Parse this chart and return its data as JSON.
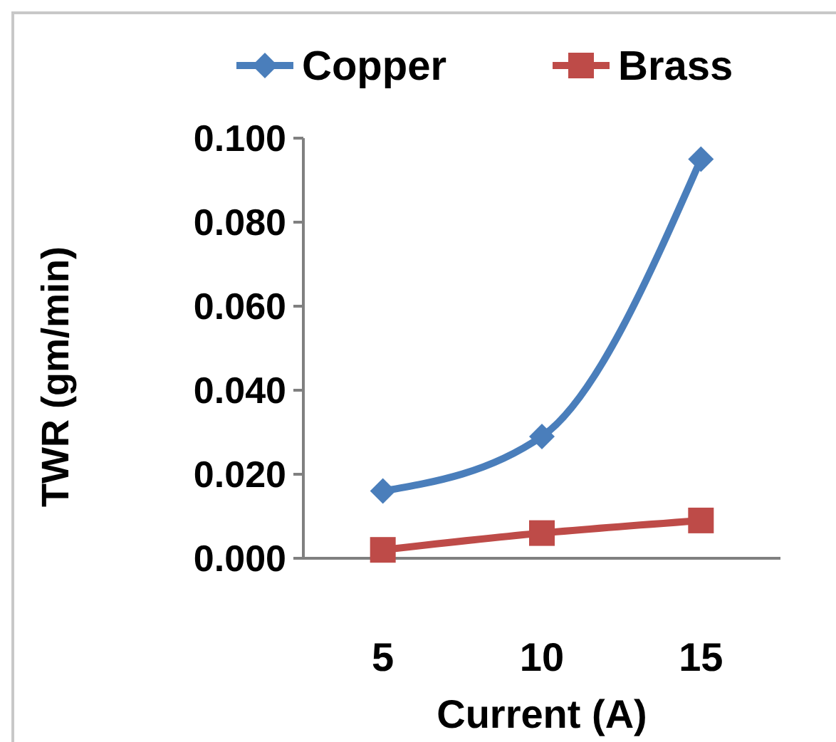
{
  "chart_data": {
    "type": "line",
    "xlabel": "Current (A)",
    "ylabel": "TWR  (gm/min)",
    "categories": [
      "5",
      "10",
      "15"
    ],
    "series": [
      {
        "name": "Copper",
        "color": "#4a7ebb",
        "values": [
          0.016,
          0.029,
          0.095
        ],
        "marker": "diamond"
      },
      {
        "name": "Brass",
        "color": "#be4b48",
        "values": [
          0.002,
          0.006,
          0.009
        ],
        "marker": "square"
      }
    ],
    "ylim": [
      0,
      0.1
    ],
    "yticks": [
      {
        "value": 0,
        "label": "0.000"
      },
      {
        "value": 0.02,
        "label": "0.020"
      },
      {
        "value": 0.04,
        "label": "0.040"
      },
      {
        "value": 0.06,
        "label": "0.060"
      },
      {
        "value": 0.08,
        "label": "0.080"
      },
      {
        "value": 0.1,
        "label": "0.100"
      }
    ],
    "grid": false,
    "legend": "top"
  }
}
